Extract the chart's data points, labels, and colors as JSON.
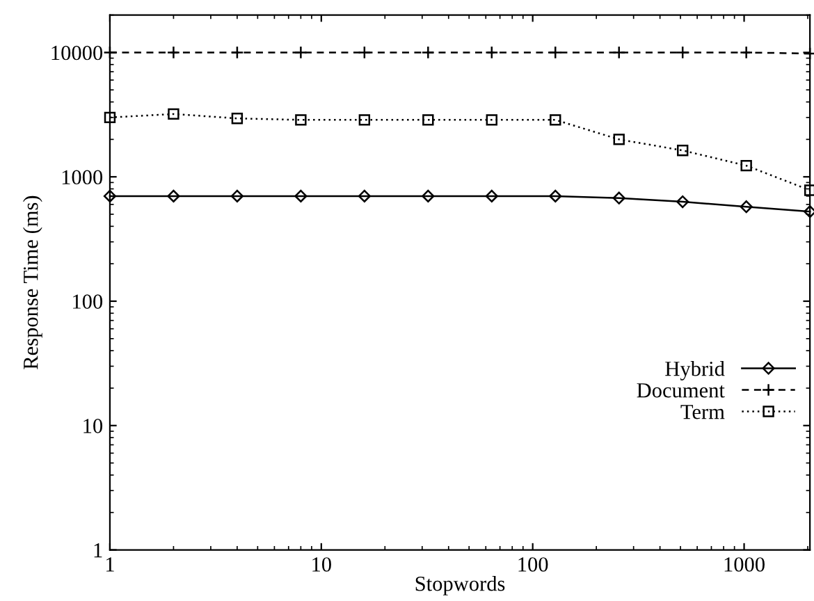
{
  "chart_data": {
    "type": "line",
    "xlabel": "Stopwords",
    "ylabel": "Response Time (ms)",
    "log": "xy",
    "legend": "right",
    "grid": false,
    "x": [
      1,
      2,
      4,
      8,
      16,
      32,
      64,
      128,
      256,
      512,
      1024,
      2048
    ],
    "xlim": [
      1,
      2048
    ],
    "xticks": [
      1,
      10,
      100,
      1000
    ],
    "ylim": [
      1,
      20000
    ],
    "yticks": [
      1,
      10,
      100,
      1000,
      10000
    ],
    "series": [
      {
        "name": "Hybrid",
        "color": "#000000",
        "marker": "diamond",
        "line_style": "solid",
        "values": [
          700,
          700,
          700,
          700,
          700,
          700,
          700,
          700,
          675,
          630,
          575,
          525
        ]
      },
      {
        "name": "Document",
        "color": "#000000",
        "marker": "cross",
        "line_style": "dashed",
        "values": [
          10000,
          10000,
          10000,
          10000,
          10000,
          10000,
          10000,
          10000,
          10000,
          10000,
          10000,
          9800
        ]
      },
      {
        "name": "Term",
        "color": "#000000",
        "marker": "square",
        "line_style": "dotted",
        "values": [
          3000,
          3200,
          2950,
          2870,
          2870,
          2870,
          2870,
          2870,
          2000,
          1630,
          1230,
          780
        ]
      }
    ]
  }
}
